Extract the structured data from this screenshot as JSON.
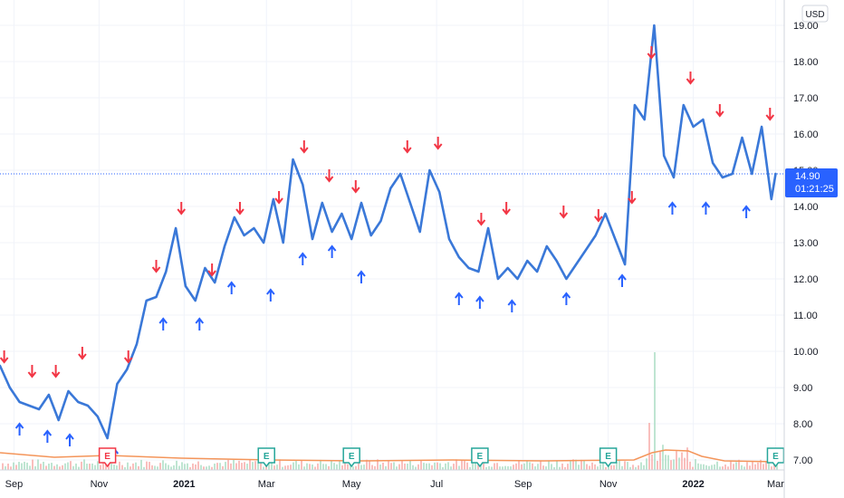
{
  "chart_data": {
    "type": "line",
    "currency": "USD",
    "ylim": [
      6.8,
      19.4
    ],
    "yticks": [
      "7.00",
      "8.00",
      "9.00",
      "10.00",
      "11.00",
      "12.00",
      "13.00",
      "14.00",
      "15.00",
      "16.00",
      "17.00",
      "18.00",
      "19.00"
    ],
    "xlim": [
      "2020-08-22",
      "2022-03-02"
    ],
    "xticks": [
      {
        "label": "Sep",
        "date": "2020-09-01",
        "year": false
      },
      {
        "label": "Nov",
        "date": "2020-11-01",
        "year": false
      },
      {
        "label": "2021",
        "date": "2021-01-01",
        "year": true
      },
      {
        "label": "Mar",
        "date": "2021-03-01",
        "year": false
      },
      {
        "label": "May",
        "date": "2021-05-01",
        "year": false
      },
      {
        "label": "Jul",
        "date": "2021-07-01",
        "year": false
      },
      {
        "label": "Sep",
        "date": "2021-09-01",
        "year": false
      },
      {
        "label": "Nov",
        "date": "2021-11-01",
        "year": false
      },
      {
        "label": "2022",
        "date": "2022-01-01",
        "year": true
      },
      {
        "label": "Mar",
        "date": "2022-03-01",
        "year": false
      }
    ],
    "grid": true,
    "line_color": "#3a78d8",
    "last_price": {
      "value": "14.90",
      "countdown": "01:21:25",
      "color": "#2962ff"
    },
    "series": [
      {
        "values": [
          [
            "2020-08-22",
            9.6
          ],
          [
            "2020-08-29",
            9.0
          ],
          [
            "2020-09-05",
            8.6
          ],
          [
            "2020-09-12",
            8.5
          ],
          [
            "2020-09-19",
            8.4
          ],
          [
            "2020-09-26",
            8.8
          ],
          [
            "2020-10-03",
            8.1
          ],
          [
            "2020-10-10",
            8.9
          ],
          [
            "2020-10-17",
            8.6
          ],
          [
            "2020-10-24",
            8.5
          ],
          [
            "2020-10-31",
            8.2
          ],
          [
            "2020-11-07",
            7.6
          ],
          [
            "2020-11-14",
            9.1
          ],
          [
            "2020-11-21",
            9.5
          ],
          [
            "2020-11-28",
            10.2
          ],
          [
            "2020-12-05",
            11.4
          ],
          [
            "2020-12-12",
            11.5
          ],
          [
            "2020-12-19",
            12.2
          ],
          [
            "2020-12-26",
            13.4
          ],
          [
            "2021-01-02",
            11.8
          ],
          [
            "2021-01-09",
            11.4
          ],
          [
            "2021-01-16",
            12.3
          ],
          [
            "2021-01-23",
            11.9
          ],
          [
            "2021-01-30",
            12.9
          ],
          [
            "2021-02-06",
            13.7
          ],
          [
            "2021-02-13",
            13.2
          ],
          [
            "2021-02-20",
            13.4
          ],
          [
            "2021-02-27",
            13.0
          ],
          [
            "2021-03-06",
            14.2
          ],
          [
            "2021-03-13",
            13.0
          ],
          [
            "2021-03-20",
            15.3
          ],
          [
            "2021-03-27",
            14.6
          ],
          [
            "2021-04-03",
            13.1
          ],
          [
            "2021-04-10",
            14.1
          ],
          [
            "2021-04-17",
            13.3
          ],
          [
            "2021-04-24",
            13.8
          ],
          [
            "2021-05-01",
            13.1
          ],
          [
            "2021-05-08",
            14.1
          ],
          [
            "2021-05-15",
            13.2
          ],
          [
            "2021-05-22",
            13.6
          ],
          [
            "2021-05-29",
            14.5
          ],
          [
            "2021-06-05",
            14.9
          ],
          [
            "2021-06-12",
            14.1
          ],
          [
            "2021-06-19",
            13.3
          ],
          [
            "2021-06-26",
            15.0
          ],
          [
            "2021-07-03",
            14.4
          ],
          [
            "2021-07-10",
            13.1
          ],
          [
            "2021-07-17",
            12.6
          ],
          [
            "2021-07-24",
            12.3
          ],
          [
            "2021-07-31",
            12.2
          ],
          [
            "2021-08-07",
            13.4
          ],
          [
            "2021-08-14",
            12.0
          ],
          [
            "2021-08-21",
            12.3
          ],
          [
            "2021-08-28",
            12.0
          ],
          [
            "2021-09-04",
            12.5
          ],
          [
            "2021-09-11",
            12.2
          ],
          [
            "2021-09-18",
            12.9
          ],
          [
            "2021-09-25",
            12.5
          ],
          [
            "2021-10-02",
            12.0
          ],
          [
            "2021-10-09",
            12.4
          ],
          [
            "2021-10-16",
            12.8
          ],
          [
            "2021-10-23",
            13.2
          ],
          [
            "2021-10-30",
            13.8
          ],
          [
            "2021-11-06",
            13.1
          ],
          [
            "2021-11-13",
            12.4
          ],
          [
            "2021-11-20",
            16.8
          ],
          [
            "2021-11-27",
            16.4
          ],
          [
            "2021-12-04",
            19.0
          ],
          [
            "2021-12-11",
            15.4
          ],
          [
            "2021-12-18",
            14.8
          ],
          [
            "2021-12-25",
            16.8
          ],
          [
            "2022-01-01",
            16.2
          ],
          [
            "2022-01-08",
            16.4
          ],
          [
            "2022-01-15",
            15.2
          ],
          [
            "2022-01-22",
            14.8
          ],
          [
            "2022-01-29",
            14.9
          ],
          [
            "2022-02-05",
            15.9
          ],
          [
            "2022-02-12",
            14.9
          ],
          [
            "2022-02-19",
            16.2
          ],
          [
            "2022-02-26",
            14.2
          ],
          [
            "2022-03-01",
            14.9
          ]
        ]
      }
    ],
    "earnings": [
      {
        "date": "2020-11-07",
        "label": "E",
        "kind": "miss"
      },
      {
        "date": "2021-03-01",
        "label": "E",
        "kind": "beat"
      },
      {
        "date": "2021-05-01",
        "label": "E",
        "kind": "beat"
      },
      {
        "date": "2021-08-01",
        "label": "E",
        "kind": "beat"
      },
      {
        "date": "2021-11-01",
        "label": "E",
        "kind": "beat"
      },
      {
        "date": "2022-03-01",
        "label": "E",
        "kind": "beat"
      }
    ],
    "signals": {
      "sell": [
        [
          "2020-08-25",
          9.8
        ],
        [
          "2020-09-14",
          9.4
        ],
        [
          "2020-10-01",
          9.4
        ],
        [
          "2020-10-20",
          9.9
        ],
        [
          "2020-11-22",
          9.8
        ],
        [
          "2020-12-12",
          12.3
        ],
        [
          "2020-12-30",
          13.9
        ],
        [
          "2021-01-21",
          12.2
        ],
        [
          "2021-02-10",
          13.9
        ],
        [
          "2021-03-10",
          14.2
        ],
        [
          "2021-03-28",
          15.6
        ],
        [
          "2021-04-15",
          14.8
        ],
        [
          "2021-05-04",
          14.5
        ],
        [
          "2021-06-10",
          15.6
        ],
        [
          "2021-07-02",
          15.7
        ],
        [
          "2021-08-02",
          13.6
        ],
        [
          "2021-08-20",
          13.9
        ],
        [
          "2021-09-30",
          13.8
        ],
        [
          "2021-10-25",
          13.7
        ],
        [
          "2021-11-18",
          14.2
        ],
        [
          "2021-12-02",
          18.2
        ],
        [
          "2021-12-30",
          17.5
        ],
        [
          "2022-01-20",
          16.6
        ],
        [
          "2022-02-25",
          16.5
        ]
      ],
      "buy": [
        [
          "2020-09-05",
          7.9
        ],
        [
          "2020-09-25",
          7.7
        ],
        [
          "2020-10-11",
          7.6
        ],
        [
          "2020-11-12",
          7.2
        ],
        [
          "2020-12-17",
          10.8
        ],
        [
          "2021-01-12",
          10.8
        ],
        [
          "2021-02-04",
          11.8
        ],
        [
          "2021-03-04",
          11.6
        ],
        [
          "2021-03-27",
          12.6
        ],
        [
          "2021-04-17",
          12.8
        ],
        [
          "2021-05-08",
          12.1
        ],
        [
          "2021-07-17",
          11.5
        ],
        [
          "2021-08-01",
          11.4
        ],
        [
          "2021-08-24",
          11.3
        ],
        [
          "2021-10-02",
          11.5
        ],
        [
          "2021-11-11",
          12.0
        ],
        [
          "2021-12-17",
          14.0
        ],
        [
          "2022-01-10",
          14.0
        ],
        [
          "2022-02-08",
          13.9
        ]
      ]
    }
  }
}
